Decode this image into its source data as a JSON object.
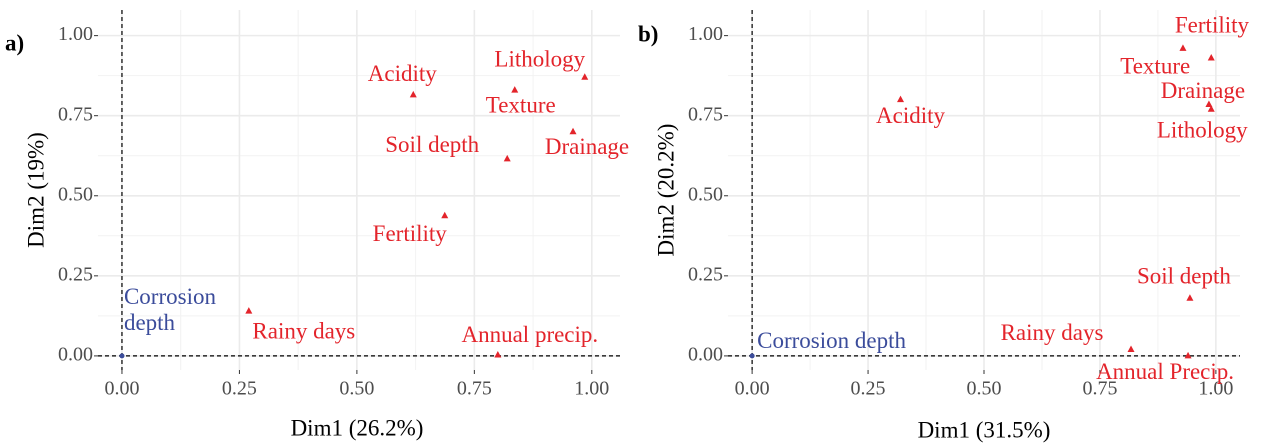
{
  "chart_data": [
    {
      "type": "scatter",
      "panel": "a)",
      "xlabel": "Dim1 (26.2%)",
      "ylabel": "Dim2 (19%)",
      "labels": [
        "Acidity",
        "Lithology",
        "Texture",
        "Soil depth",
        "Drainage",
        "Fertility",
        "Rainy days",
        "Annual precip.",
        "Corrosion depth"
      ],
      "x": [
        0.62,
        0.985,
        0.836,
        0.82,
        0.96,
        0.687,
        0.27,
        0.8,
        0.0
      ],
      "values": [
        0.815,
        0.87,
        0.83,
        0.615,
        0.7,
        0.4375,
        0.14,
        0.003,
        0.0
      ],
      "point_colors": [
        "#e3242b",
        "#e3242b",
        "#e3242b",
        "#e3242b",
        "#e3242b",
        "#e3242b",
        "#e3242b",
        "#e3242b",
        "#3b4c9b"
      ],
      "xlim": [
        -0.051,
        1.06
      ],
      "ylim": [
        -0.044,
        1.08
      ],
      "xticks": [
        {
          "value": 0,
          "label": "0.00"
        },
        {
          "value": 0.25,
          "label": "0.25"
        },
        {
          "value": 0.5,
          "label": "0.50"
        },
        {
          "value": 0.75,
          "label": "0.75"
        },
        {
          "value": 1,
          "label": "1.00"
        }
      ],
      "yticks": [
        {
          "value": 0,
          "label": "0.00"
        },
        {
          "value": 0.25,
          "label": "0.25"
        },
        {
          "value": 0.5,
          "label": "0.50"
        },
        {
          "value": 0.75,
          "label": "0.75"
        },
        {
          "value": 1,
          "label": "1.00"
        }
      ],
      "reference_lines": {
        "x": 0,
        "y": 0
      },
      "grid": true
    },
    {
      "type": "scatter",
      "panel": "b)",
      "xlabel": "Dim1 (31.5%)",
      "ylabel": "Dim2 (20.2%)",
      "labels": [
        "Fertility",
        "Texture",
        "Drainage",
        "Lithology",
        "Acidity",
        "Soil depth",
        "Rainy days",
        "Annual Precip.",
        "Corrosion depth"
      ],
      "x": [
        0.929,
        0.99,
        0.985,
        0.99,
        0.32,
        0.944,
        0.817,
        0.94,
        0.0
      ],
      "values": [
        0.96,
        0.93,
        0.785,
        0.77,
        0.8,
        0.18,
        0.02,
        0.0,
        0.0
      ],
      "point_colors": [
        "#e3242b",
        "#e3242b",
        "#e3242b",
        "#e3242b",
        "#e3242b",
        "#e3242b",
        "#e3242b",
        "#e3242b",
        "#3b4c9b"
      ],
      "xlim": [
        -0.052,
        1.052
      ],
      "ylim": [
        -0.044,
        1.08
      ],
      "xticks": [
        {
          "value": 0,
          "label": "0.00"
        },
        {
          "value": 0.25,
          "label": "0.25"
        },
        {
          "value": 0.5,
          "label": "0.50"
        },
        {
          "value": 0.75,
          "label": "0.75"
        },
        {
          "value": 1,
          "label": "1.00"
        }
      ],
      "yticks": [
        {
          "value": 0,
          "label": "0.00"
        },
        {
          "value": 0.25,
          "label": "0.25"
        },
        {
          "value": 0.5,
          "label": "0.50"
        },
        {
          "value": 0.75,
          "label": "0.75"
        },
        {
          "value": 1,
          "label": "1.00"
        }
      ],
      "reference_lines": {
        "x": 0,
        "y": 0
      },
      "grid": true
    }
  ]
}
